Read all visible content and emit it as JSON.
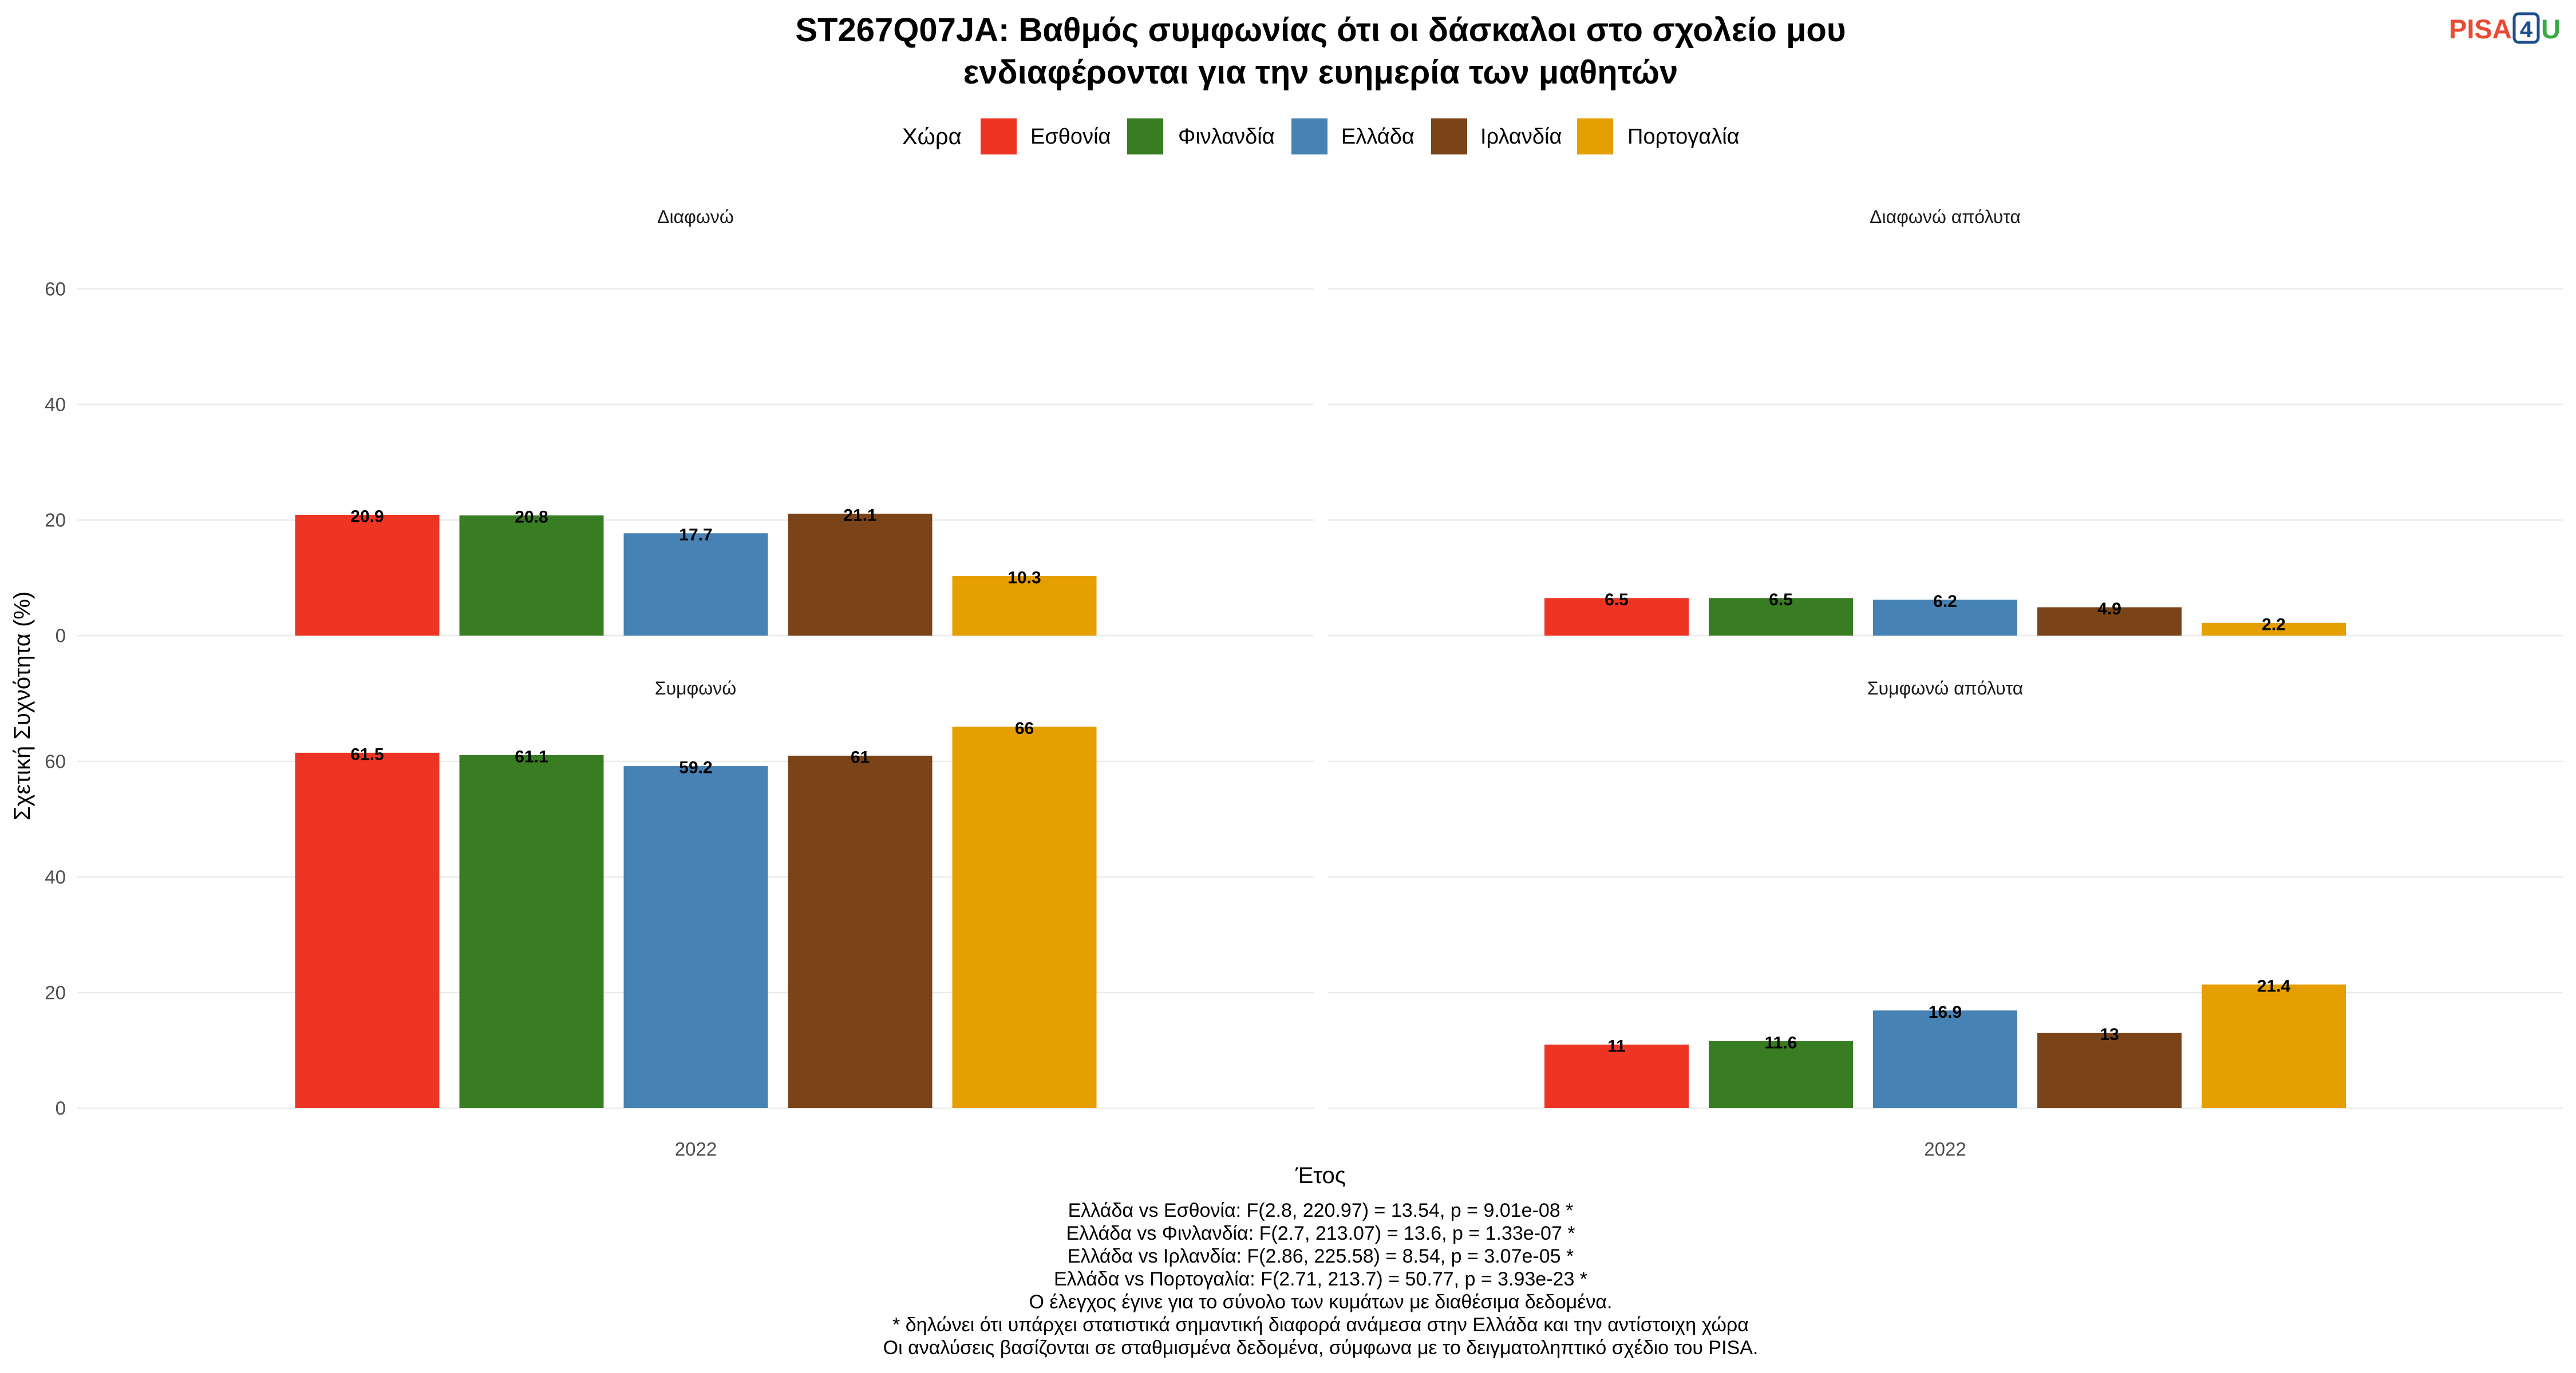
{
  "logo": {
    "part1": "PISA",
    "part2": "4",
    "part3": "U",
    "colors": {
      "pisa": "#E94B35",
      "four": "#1F4E8C",
      "u": "#3AAA45"
    }
  },
  "chart_data": {
    "type": "bar",
    "title": [
      "ST267Q07JA: Βαθμός συμφωνίας ότι οι δάσκαλοι στο σχολείο μου",
      "ενδιαφέρονται για την ευημερία των μαθητών"
    ],
    "xlabel": "Έτος",
    "ylabel": "Σχετική Συχνότητα (%)",
    "categories": [
      "2022"
    ],
    "ylim": [
      -3.3,
      69.3
    ],
    "yticks": [
      0,
      20,
      40,
      60
    ],
    "grid": true,
    "legend": {
      "title": "Χώρα",
      "position": "top"
    },
    "series": [
      {
        "name": "Εσθονία",
        "color": "#EE3524"
      },
      {
        "name": "Φινλανδία",
        "color": "#387D22"
      },
      {
        "name": "Ελλάδα",
        "color": "#4682B4"
      },
      {
        "name": "Ιρλανδία",
        "color": "#7A4418"
      },
      {
        "name": "Πορτογαλία",
        "color": "#E69F00"
      }
    ],
    "facets": [
      {
        "title": "Διαφωνώ",
        "values": [
          20.9,
          20.8,
          17.7,
          21.1,
          10.3
        ]
      },
      {
        "title": "Διαφωνώ απόλυτα",
        "values": [
          6.5,
          6.5,
          6.2,
          4.9,
          2.2
        ]
      },
      {
        "title": "Συμφωνώ",
        "values": [
          61.5,
          61.1,
          59.2,
          61,
          66
        ]
      },
      {
        "title": "Συμφωνώ απόλυτα",
        "values": [
          11,
          11.6,
          16.9,
          13,
          21.4
        ]
      }
    ]
  },
  "notes": [
    "Ελλάδα vs Εσθονία: F(2.8, 220.97) = 13.54, p = 9.01e-08 *",
    "Ελλάδα vs Φινλανδία: F(2.7, 213.07) = 13.6, p = 1.33e-07 *",
    "Ελλάδα vs Ιρλανδία: F(2.86, 225.58) = 8.54, p = 3.07e-05 *",
    "Ελλάδα vs Πορτογαλία: F(2.71, 213.7) = 50.77, p = 3.93e-23 *",
    "Ο έλεγχος έγινε για το σύνολο των κυμάτων με διαθέσιμα δεδομένα.",
    "* δηλώνει ότι υπάρχει στατιστικά σημαντική διαφορά ανάμεσα στην Ελλάδα και την αντίστοιχη χώρα",
    "Οι αναλύσεις βασίζονται σε σταθμισμένα δεδομένα, σύμφωνα με το δειγματοληπτικό σχέδιο του PISA."
  ]
}
